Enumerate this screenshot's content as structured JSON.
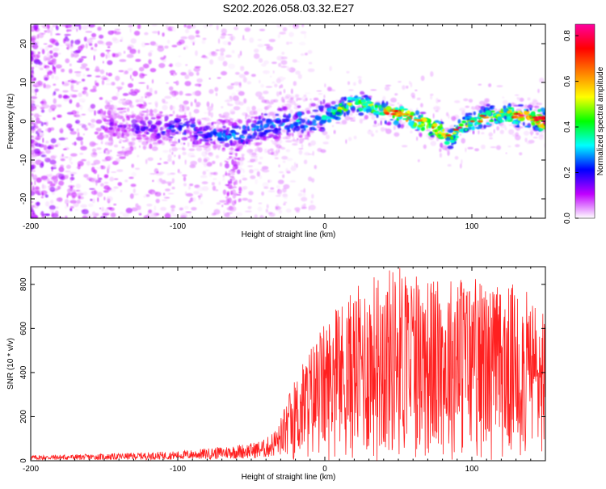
{
  "title": "S202.2026.058.03.32.E27",
  "chart_data": [
    {
      "type": "heatmap",
      "xlabel": "Height of straight line (km)",
      "ylabel": "Frequency (Hz)",
      "xlim": [
        -200,
        150
      ],
      "ylim": [
        -25,
        25
      ],
      "xticks": [
        -200,
        -100,
        0,
        100
      ],
      "yticks": [
        -20,
        -10,
        0,
        10,
        20
      ],
      "colorbar": {
        "label": "Normalized spectral amplitude",
        "range": [
          0,
          0.85
        ],
        "ticks": [
          "0.0",
          "0.2",
          "0.4",
          "0.6",
          "0.8"
        ],
        "colors": [
          "#ffffff",
          "#c000ff",
          "#0000ff",
          "#00ffff",
          "#00ff00",
          "#ffff00",
          "#ff8000",
          "#ff0000",
          "#ff00a0"
        ]
      },
      "ridge": {
        "x": [
          -150,
          -120,
          -100,
          -80,
          -60,
          -40,
          -20,
          0,
          10,
          20,
          35,
          50,
          65,
          80,
          85,
          100,
          120,
          140,
          150
        ],
        "frequency": [
          -1,
          -2,
          -2,
          -3,
          -4,
          -1,
          0,
          1,
          3,
          5,
          3,
          2,
          0,
          -3,
          -4,
          0,
          2,
          1,
          0
        ],
        "amplitude": [
          0.12,
          0.16,
          0.22,
          0.2,
          0.25,
          0.24,
          0.28,
          0.3,
          0.45,
          0.4,
          0.5,
          0.65,
          0.55,
          0.6,
          0.5,
          0.45,
          0.5,
          0.6,
          0.75
        ]
      }
    },
    {
      "type": "line",
      "xlabel": "Height of straight line (km)",
      "ylabel": "SNR (10 * v/v)",
      "xlim": [
        -200,
        150
      ],
      "ylim": [
        0,
        880
      ],
      "xticks": [
        -200,
        -100,
        0,
        100
      ],
      "yticks": [
        0,
        200,
        400,
        600,
        800
      ],
      "color": "#ff2020",
      "x": [
        -200,
        -150,
        -100,
        -80,
        -50,
        -40,
        -30,
        -20,
        -10,
        0,
        10,
        20,
        30,
        40,
        50,
        60,
        70,
        80,
        90,
        100,
        110,
        120,
        130,
        140,
        150
      ],
      "y": [
        20,
        25,
        35,
        45,
        65,
        80,
        140,
        250,
        350,
        420,
        480,
        520,
        560,
        580,
        600,
        580,
        560,
        540,
        580,
        560,
        540,
        520,
        540,
        500,
        480
      ]
    }
  ]
}
